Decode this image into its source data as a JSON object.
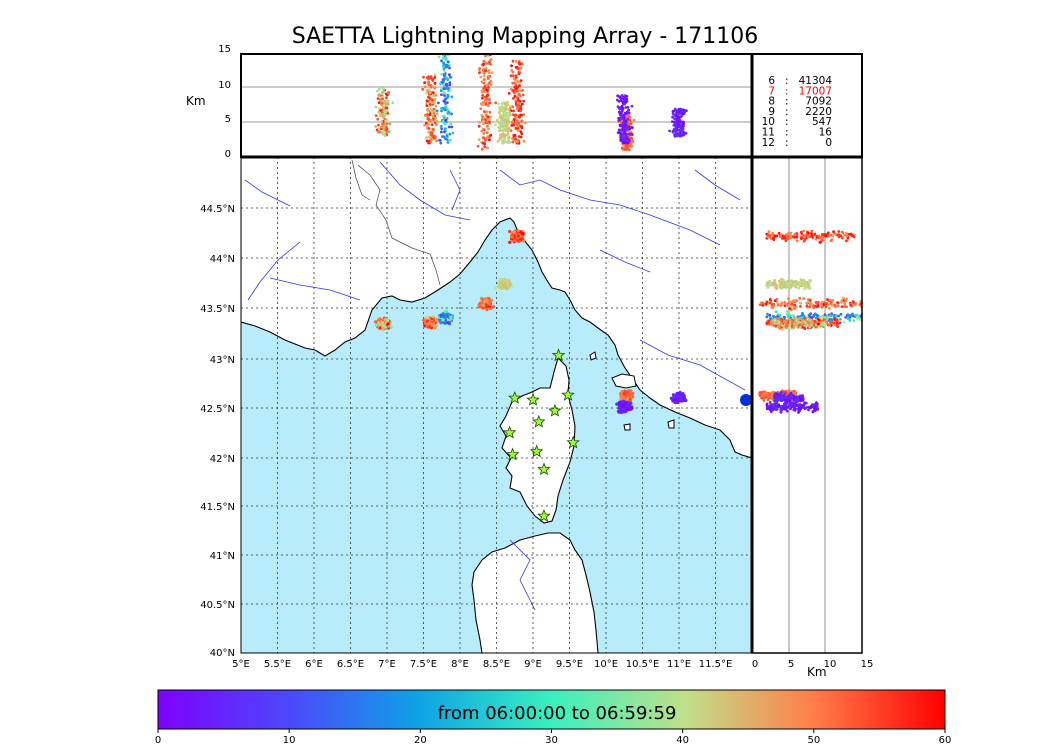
{
  "title": "SAETTA Lightning Mapping Array - 171106",
  "altitude_unit": "Km",
  "distance_unit": "Km",
  "top_panel_yticks": [
    "15",
    "10",
    "5",
    "0"
  ],
  "right_panel_xticks": [
    "0",
    "5",
    "10",
    "15"
  ],
  "lon_ticks": [
    "5°E",
    "5.5°E",
    "6°E",
    "6.5°E",
    "7°E",
    "7.5°E",
    "8°E",
    "8.5°E",
    "9°E",
    "9.5°E",
    "10°E",
    "10.5°E",
    "11°E",
    "11.5°E"
  ],
  "lat_ticks": [
    "44.5°N",
    "44°N",
    "43.5°N",
    "43°N",
    "42.5°N",
    "42°N",
    "41.5°N",
    "41°N",
    "40.5°N",
    "40°N"
  ],
  "station_counts": [
    {
      "stations": "6",
      "count": "41304",
      "highlight": false
    },
    {
      "stations": "7",
      "count": "17007",
      "highlight": true
    },
    {
      "stations": "8",
      "count": "7092",
      "highlight": false
    },
    {
      "stations": "9",
      "count": "2220",
      "highlight": false
    },
    {
      "stations": "10",
      "count": "547",
      "highlight": false
    },
    {
      "stations": "11",
      "count": "16",
      "highlight": false
    },
    {
      "stations": "12",
      "count": "0",
      "highlight": false
    }
  ],
  "colorbar": {
    "label": "from 06:00:00 to 06:59:59",
    "ticks": [
      "0",
      "10",
      "20",
      "30",
      "40",
      "50",
      "60"
    ]
  },
  "colors": {
    "sea": "#b9ecfb",
    "land": "#ffffff",
    "rivers": "#3333ff",
    "stations": "#99ff33",
    "highlight": "#ff0000"
  },
  "chart_data": {
    "type": "scatter",
    "map_extent": {
      "lon": [
        5,
        12
      ],
      "lat": [
        40,
        45
      ]
    },
    "altitude_range_km": [
      0,
      15
    ],
    "color_scale_minutes": [
      0,
      60
    ],
    "stations": [
      {
        "lon": 9.35,
        "lat": 43.0
      },
      {
        "lon": 8.75,
        "lat": 42.57
      },
      {
        "lon": 9.0,
        "lat": 42.55
      },
      {
        "lon": 9.48,
        "lat": 42.6
      },
      {
        "lon": 9.3,
        "lat": 42.44
      },
      {
        "lon": 9.08,
        "lat": 42.33
      },
      {
        "lon": 8.68,
        "lat": 42.22
      },
      {
        "lon": 9.55,
        "lat": 42.12
      },
      {
        "lon": 9.05,
        "lat": 42.03
      },
      {
        "lon": 8.72,
        "lat": 42.0
      },
      {
        "lon": 9.15,
        "lat": 41.85
      },
      {
        "lon": 9.15,
        "lat": 41.38
      }
    ],
    "lightning_clusters": [
      {
        "lon": 8.78,
        "lat": 44.2,
        "alt": [
          2,
          14
        ],
        "time": [
          48,
          60
        ]
      },
      {
        "lon": 8.35,
        "lat": 43.52,
        "alt": [
          1,
          15
        ],
        "time": [
          45,
          60
        ]
      },
      {
        "lon": 7.8,
        "lat": 43.38,
        "alt": [
          2,
          15
        ],
        "time": [
          5,
          40
        ]
      },
      {
        "lon": 7.6,
        "lat": 43.33,
        "alt": [
          2,
          12
        ],
        "time": [
          40,
          60
        ]
      },
      {
        "lon": 6.95,
        "lat": 43.32,
        "alt": [
          3,
          10
        ],
        "time": [
          35,
          60
        ]
      },
      {
        "lon": 8.6,
        "lat": 43.72,
        "alt": [
          2,
          8
        ],
        "time": [
          38,
          44
        ]
      },
      {
        "lon": 10.28,
        "lat": 42.6,
        "alt": [
          1,
          6
        ],
        "time": [
          48,
          56
        ]
      },
      {
        "lon": 10.25,
        "lat": 42.48,
        "alt": [
          2,
          9
        ],
        "time": [
          0,
          8
        ]
      },
      {
        "lon": 11.0,
        "lat": 42.57,
        "alt": [
          3,
          7
        ],
        "time": [
          0,
          8
        ]
      }
    ]
  }
}
